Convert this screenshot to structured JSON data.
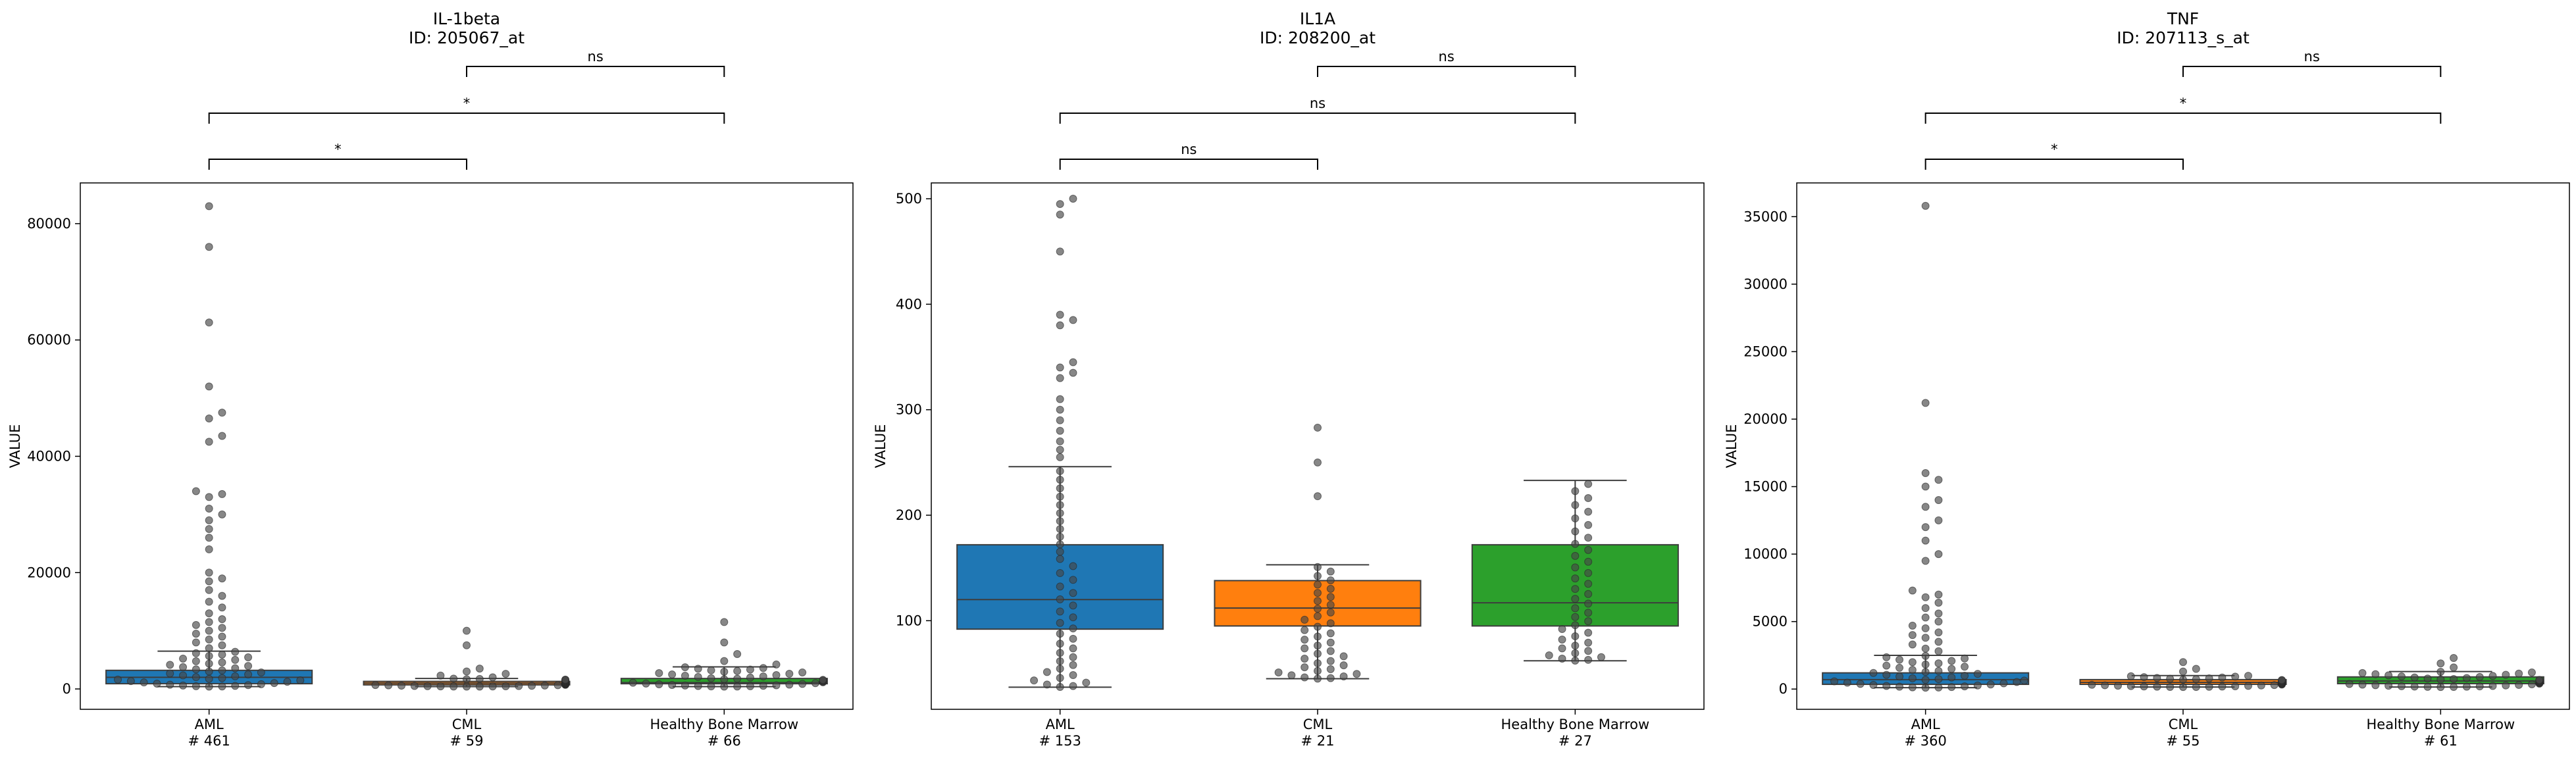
{
  "chart_data": [
    {
      "type": "box",
      "title": "IL-1beta",
      "subtitle": "ID: 205067_at",
      "ylabel": "VALUE",
      "ylim": [
        -3500,
        87000
      ],
      "yticks": [
        0,
        20000,
        40000,
        60000,
        80000
      ],
      "categories": [
        {
          "name": "AML",
          "count": "# 461",
          "color": "#1f77b4",
          "q1": 900,
          "median": 2000,
          "q3": 3200,
          "whisker_low": 400,
          "whisker_high": 6500,
          "outliers": [
            83000,
            76000,
            63000,
            52000,
            47500,
            46500,
            43500,
            42500,
            34000,
            33500,
            33000,
            31000,
            30000,
            29000,
            27500,
            26000,
            24000,
            20000,
            19000,
            18500,
            17000,
            16000,
            15000,
            14000,
            13000,
            12000,
            11500,
            11000,
            10500,
            10000,
            9500,
            9000,
            8500,
            8000,
            7500,
            7000
          ]
        },
        {
          "name": "CML",
          "count": "# 59",
          "color": "#ff7f0e",
          "q1": 700,
          "median": 1000,
          "q3": 1300,
          "whisker_low": 400,
          "whisker_high": 1800,
          "outliers": [
            10000,
            7500,
            3500,
            3000,
            2600,
            2300,
            2000
          ]
        },
        {
          "name": "Healthy Bone Marrow",
          "count": "# 66",
          "color": "#2ca02c",
          "q1": 900,
          "median": 1100,
          "q3": 1800,
          "whisker_low": 400,
          "whisker_high": 3800,
          "outliers": [
            11500,
            8000,
            6000,
            4800,
            4200
          ]
        }
      ],
      "brackets": [
        {
          "from": 0,
          "to": 1,
          "label": "*",
          "level": 0
        },
        {
          "from": 0,
          "to": 2,
          "label": "*",
          "level": 1
        },
        {
          "from": 1,
          "to": 2,
          "label": "ns",
          "level": 2
        }
      ]
    },
    {
      "type": "box",
      "title": "IL1A",
      "subtitle": "ID: 208200_at",
      "ylabel": "VALUE",
      "ylim": [
        16,
        515
      ],
      "yticks": [
        100,
        200,
        300,
        400,
        500
      ],
      "categories": [
        {
          "name": "AML",
          "count": "# 153",
          "color": "#1f77b4",
          "q1": 92,
          "median": 120,
          "q3": 172,
          "whisker_low": 37,
          "whisker_high": 246,
          "outliers": [
            500,
            495,
            485,
            450,
            390,
            385,
            380,
            345,
            340,
            335,
            330,
            310,
            300,
            290,
            280,
            270,
            262,
            255
          ]
        },
        {
          "name": "CML",
          "count": "# 21",
          "color": "#ff7f0e",
          "q1": 95,
          "median": 112,
          "q3": 138,
          "whisker_low": 45,
          "whisker_high": 153,
          "outliers": [
            283,
            250,
            218
          ]
        },
        {
          "name": "Healthy Bone Marrow",
          "count": "# 27",
          "color": "#2ca02c",
          "q1": 95,
          "median": 117,
          "q3": 172,
          "whisker_low": 62,
          "whisker_high": 233,
          "outliers": []
        }
      ],
      "brackets": [
        {
          "from": 0,
          "to": 1,
          "label": "ns",
          "level": 0
        },
        {
          "from": 0,
          "to": 2,
          "label": "ns",
          "level": 1
        },
        {
          "from": 1,
          "to": 2,
          "label": "ns",
          "level": 2
        }
      ]
    },
    {
      "type": "box",
      "title": "TNF",
      "subtitle": "ID: 207113_s_at",
      "ylabel": "VALUE",
      "ylim": [
        -1500,
        37500
      ],
      "yticks": [
        0,
        5000,
        10000,
        15000,
        20000,
        25000,
        30000,
        35000
      ],
      "categories": [
        {
          "name": "AML",
          "count": "# 360",
          "color": "#1f77b4",
          "q1": 350,
          "median": 700,
          "q3": 1200,
          "whisker_low": 100,
          "whisker_high": 2500,
          "outliers": [
            35800,
            21200,
            16000,
            15500,
            15000,
            14000,
            13500,
            12500,
            12000,
            11000,
            10000,
            9500,
            7300,
            7000,
            6800,
            6400,
            6000,
            5600,
            5300,
            5000,
            4700,
            4500,
            4200,
            4000,
            3800,
            3500,
            3300,
            3000,
            2800
          ]
        },
        {
          "name": "CML",
          "count": "# 55",
          "color": "#ff7f0e",
          "q1": 350,
          "median": 500,
          "q3": 700,
          "whisker_low": 150,
          "whisker_high": 1000,
          "outliers": [
            2000,
            1500,
            1300
          ]
        },
        {
          "name": "Healthy Bone Marrow",
          "count": "# 61",
          "color": "#2ca02c",
          "q1": 400,
          "median": 600,
          "q3": 900,
          "whisker_low": 150,
          "whisker_high": 1300,
          "outliers": [
            2300,
            1900,
            1600
          ]
        }
      ],
      "brackets": [
        {
          "from": 0,
          "to": 1,
          "label": "*",
          "level": 0
        },
        {
          "from": 0,
          "to": 2,
          "label": "*",
          "level": 1
        },
        {
          "from": 1,
          "to": 2,
          "label": "ns",
          "level": 2
        }
      ]
    }
  ]
}
